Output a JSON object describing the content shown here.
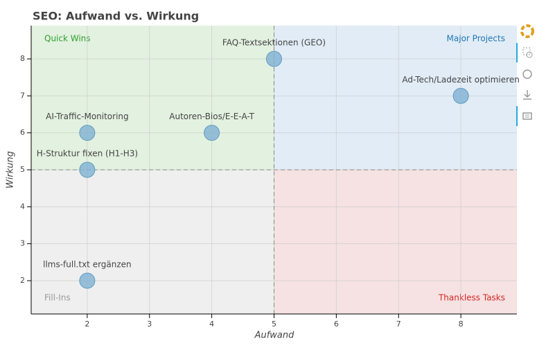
{
  "chart_data": {
    "type": "scatter",
    "title": "SEO: Aufwand vs. Wirkung",
    "xlabel": "Aufwand",
    "ylabel": "Wirkung",
    "x": [
      2,
      2,
      2,
      4,
      5,
      8
    ],
    "y": [
      2,
      5,
      6,
      6,
      8,
      7
    ],
    "labels": [
      "llms-full.txt ergänzen",
      "H-Struktur fixen (H1-H3)",
      "AI-Traffic-Monitoring",
      "Autoren-Bios/E-E-A-T",
      "FAQ-Textsektionen (GEO)",
      "Ad-Tech/Ladezeit optimieren"
    ],
    "color": "#7fb2d3",
    "xlim": [
      1.1,
      8.9
    ],
    "ylim": [
      1.1,
      8.9
    ],
    "xticks": [
      2,
      3,
      4,
      5,
      6,
      7,
      8
    ],
    "yticks": [
      2,
      3,
      4,
      5,
      6,
      7,
      8
    ],
    "vline": 5,
    "hline": 5,
    "grid": true,
    "quadrants": [
      {
        "label": "Quick Wins",
        "corner": "top-left",
        "color": "#2ca02c",
        "fill": "#e3f1e0"
      },
      {
        "label": "Major Projects",
        "corner": "top-right",
        "color": "#1f77b4",
        "fill": "#e1ecf6"
      },
      {
        "label": "Fill-Ins",
        "corner": "bottom-left",
        "color": "#999999",
        "fill": "#efefef"
      },
      {
        "label": "Thankless Tasks",
        "corner": "bottom-right",
        "color": "#d62728",
        "fill": "#f6e2e2"
      }
    ]
  }
}
